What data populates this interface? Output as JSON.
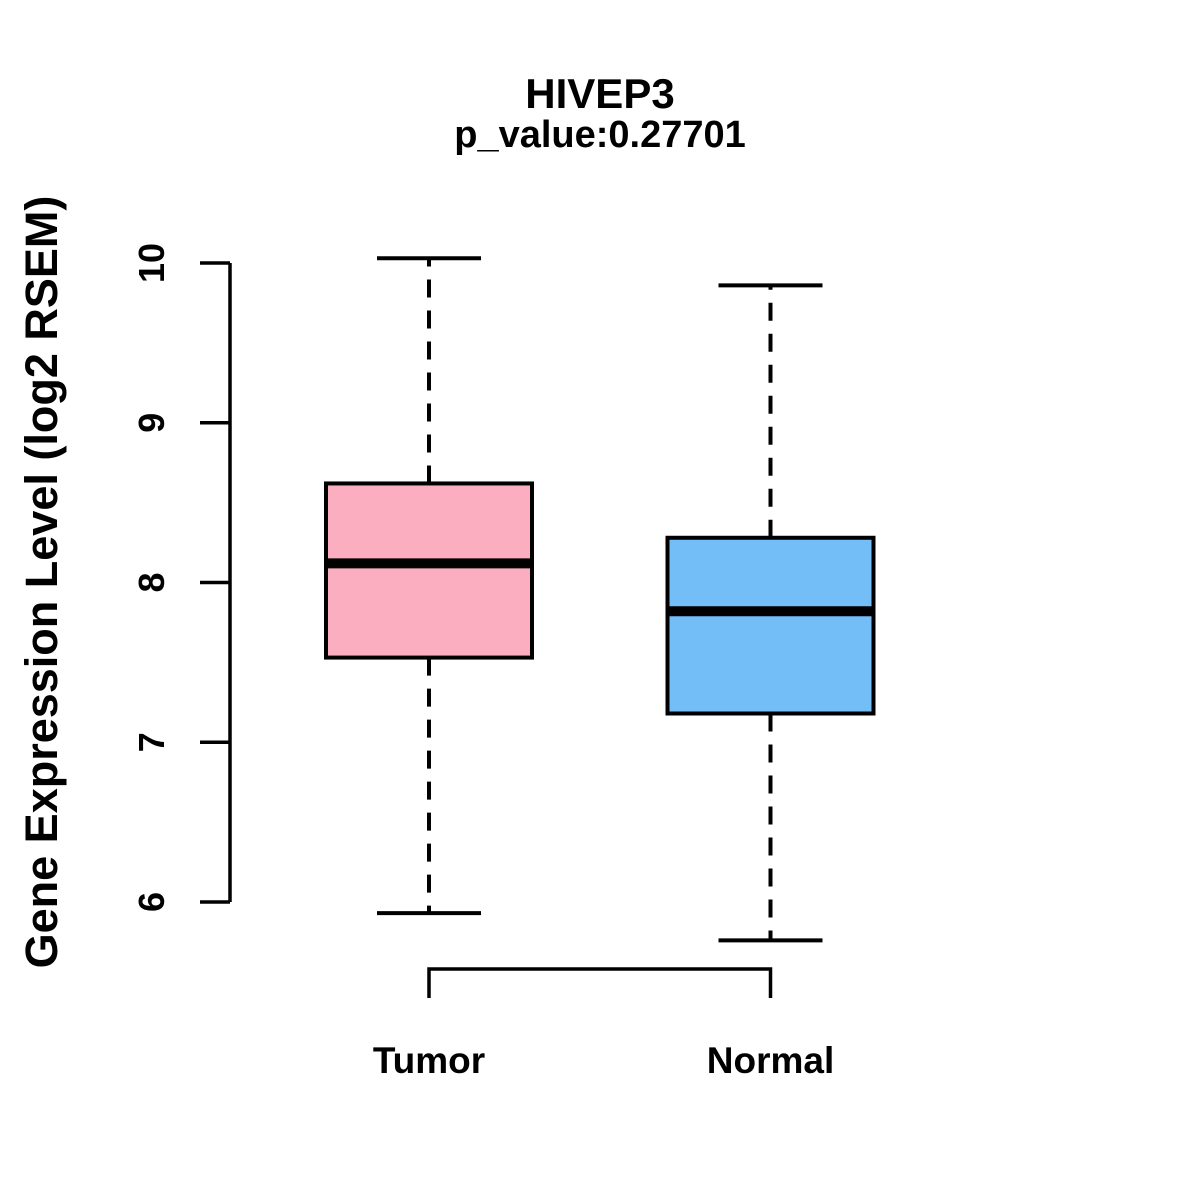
{
  "chart_data": {
    "type": "boxplot",
    "title": "HIVEP3",
    "subtitle": "p_value:0.27701",
    "ylabel": "Gene Expression Level (log2 RSEM)",
    "xlabel": "",
    "ylim": [
      6,
      10
    ],
    "yticks": [
      6,
      7,
      8,
      9,
      10
    ],
    "grid": false,
    "legend": "none",
    "background_color": "#FFFFFF",
    "axis_color": "#000000",
    "categories": [
      "Tumor",
      "Normal"
    ],
    "groups": [
      {
        "label": "Tumor",
        "fill_color": "#FCAEC1",
        "whisker_high": 10.03,
        "q3": 8.62,
        "median": 8.12,
        "q1": 7.53,
        "whisker_low": 5.93
      },
      {
        "label": "Normal",
        "fill_color": "#74BEF8",
        "whisker_high": 9.86,
        "q3": 8.28,
        "median": 7.82,
        "q1": 7.18,
        "whisker_low": 5.76
      }
    ]
  }
}
